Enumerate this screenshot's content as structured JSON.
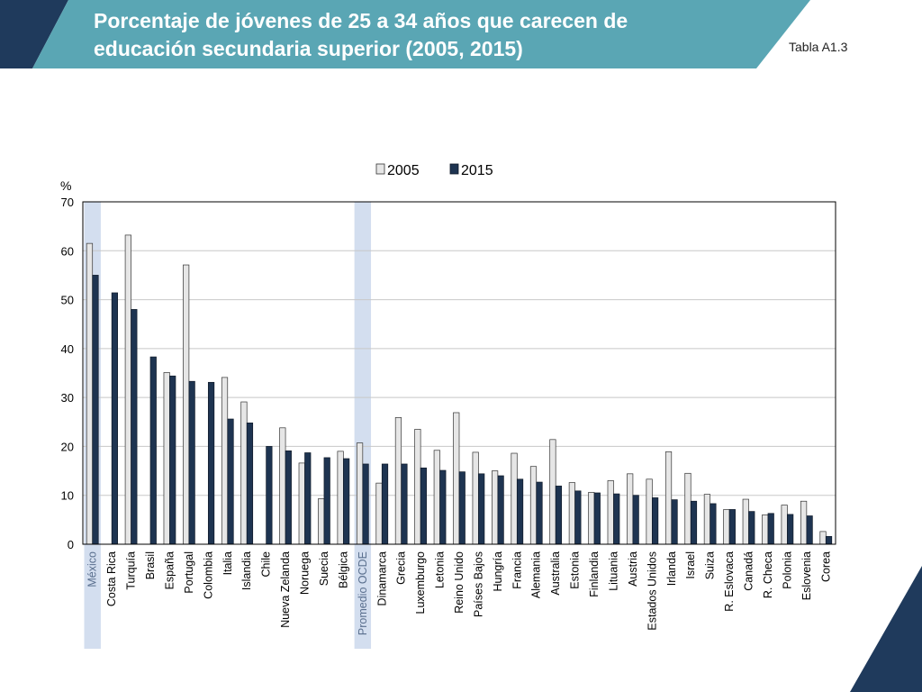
{
  "header": {
    "title_line1": "Porcentaje de jóvenes de 25 a 34 años que carecen de",
    "title_line2": "educación secundaria superior (2005, 2015)",
    "table_ref": "Tabla A1.3"
  },
  "colors": {
    "banner_teal": "#5aa6b4",
    "banner_navy": "#1f3a5c",
    "bar_2005": "#e6e6e6",
    "bar_2015": "#1e3451",
    "highlight": "#d3deef"
  },
  "chart_data": {
    "type": "bar",
    "ylabel": "%",
    "ylim": [
      0,
      70
    ],
    "yticks": [
      0,
      10,
      20,
      30,
      40,
      50,
      60,
      70
    ],
    "grid": true,
    "legend_position": "top",
    "highlighted_categories": [
      "México",
      "Promedio OCDE"
    ],
    "categories": [
      "México",
      "Costa Rica",
      "Turquía",
      "Brasil",
      "España",
      "Portugal",
      "Colombia",
      "Italia",
      "Islandia",
      "Chile",
      "Nueva Zelanda",
      "Noruega",
      "Suecia",
      "Bélgica",
      "Promedio OCDE",
      "Dinamarca",
      "Grecia",
      "Luxemburgo",
      "Letonia",
      "Reino Unido",
      "Países Bajos",
      "Hungría",
      "Francia",
      "Alemania",
      "Australia",
      "Estonia",
      "Finlandia",
      "Lituania",
      "Austria",
      "Estados Unidos",
      "Irlanda",
      "Israel",
      "Suiza",
      "R. Eslovaca",
      "Canadá",
      "R. Checa",
      "Polonia",
      "Eslovenia",
      "Corea"
    ],
    "series": [
      {
        "name": "2005",
        "values": [
          61.5,
          null,
          63.2,
          null,
          35.1,
          57.1,
          null,
          34.1,
          29.1,
          null,
          23.8,
          16.6,
          9.3,
          19.0,
          20.7,
          12.5,
          25.9,
          23.5,
          19.2,
          26.9,
          18.8,
          15.0,
          18.6,
          15.9,
          21.4,
          12.6,
          10.6,
          13.0,
          14.4,
          13.3,
          18.9,
          14.5,
          10.2,
          7.1,
          9.2,
          6.0,
          8.0,
          8.8,
          2.6
        ]
      },
      {
        "name": "2015",
        "values": [
          55.0,
          51.4,
          48.0,
          38.3,
          34.4,
          33.3,
          33.1,
          25.6,
          24.8,
          20.0,
          19.1,
          18.7,
          17.7,
          17.5,
          16.4,
          16.4,
          16.4,
          15.6,
          15.1,
          14.8,
          14.4,
          14.0,
          13.3,
          12.7,
          11.9,
          10.9,
          10.5,
          10.3,
          10.0,
          9.5,
          9.1,
          8.8,
          8.3,
          7.1,
          6.7,
          6.3,
          6.1,
          5.8,
          1.6
        ]
      }
    ]
  }
}
